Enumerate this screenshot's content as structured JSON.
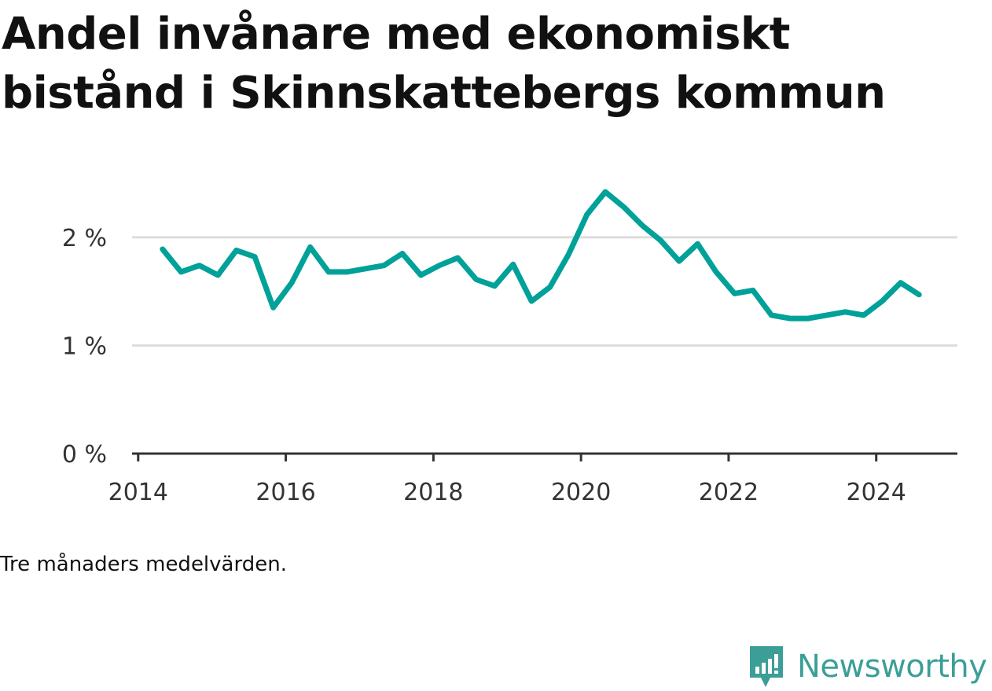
{
  "title": "Andel invånare med ekonomiskt bistånd i Skinnskattebergs kommun",
  "note": "Tre månaders medelvärden.",
  "brand": {
    "name": "Newsworthy",
    "logo_icon": "bar-chart-speech-bubble-icon",
    "color": "#3b9f97"
  },
  "colors": {
    "line": "#00a199",
    "grid": "#dddddd",
    "axis": "#333333"
  },
  "chart_data": {
    "type": "line",
    "title": "Andel invånare med ekonomiskt bistånd i Skinnskattebergs kommun",
    "xlabel": "",
    "ylabel": "",
    "x_ticks": [
      "2014",
      "2016",
      "2018",
      "2020",
      "2022",
      "2024"
    ],
    "y_ticks": [
      {
        "value": 0,
        "label": "0 %"
      },
      {
        "value": 1,
        "label": "1 %"
      },
      {
        "value": 2,
        "label": "2 %"
      }
    ],
    "xlim": [
      2013.917,
      2025.1
    ],
    "ylim": [
      0,
      2.45
    ],
    "grid": true,
    "series": [
      {
        "x": [
          2014.33,
          2014.58,
          2014.83,
          2015.08,
          2015.33,
          2015.58,
          2015.83,
          2016.08,
          2016.33,
          2016.58,
          2016.83,
          2017.08,
          2017.33,
          2017.58,
          2017.83,
          2018.08,
          2018.33,
          2018.58,
          2018.83,
          2019.08,
          2019.33,
          2019.58,
          2019.83,
          2020.08,
          2020.33,
          2020.58,
          2020.83,
          2021.08,
          2021.33,
          2021.58,
          2021.83,
          2022.08,
          2022.33,
          2022.58,
          2022.83,
          2023.08,
          2023.33,
          2023.58,
          2023.83,
          2024.08,
          2024.33,
          2024.58
        ],
        "values": [
          1.89,
          1.68,
          1.74,
          1.65,
          1.88,
          1.82,
          1.35,
          1.58,
          1.91,
          1.68,
          1.68,
          1.71,
          1.74,
          1.85,
          1.65,
          1.74,
          1.81,
          1.61,
          1.55,
          1.75,
          1.41,
          1.54,
          1.84,
          2.21,
          2.42,
          2.28,
          2.11,
          1.97,
          1.78,
          1.94,
          1.68,
          1.48,
          1.51,
          1.28,
          1.25,
          1.25,
          1.28,
          1.31,
          1.28,
          1.41,
          1.58,
          1.47
        ]
      }
    ]
  }
}
